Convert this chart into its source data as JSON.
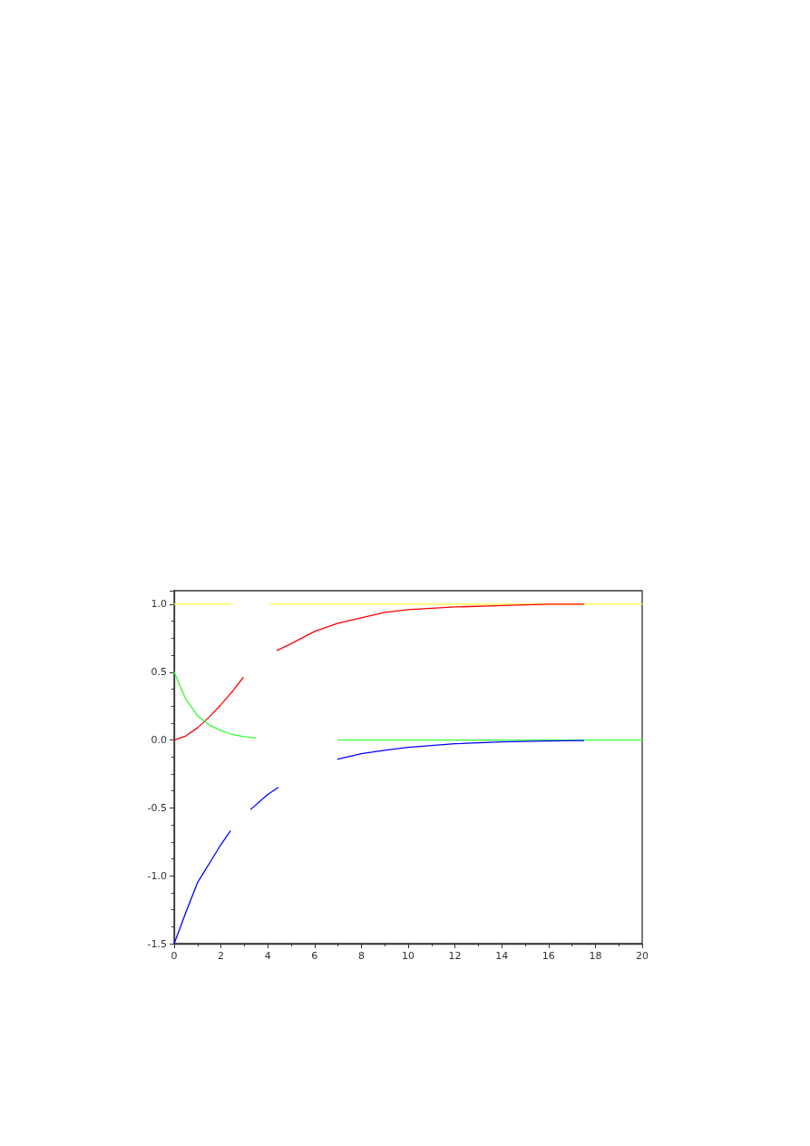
{
  "chart_data": {
    "type": "line",
    "xlim": [
      0,
      20
    ],
    "xticks": [
      0,
      2,
      4,
      6,
      8,
      10,
      12,
      14,
      16,
      18,
      20
    ],
    "ylim": [
      -1.5,
      1.1
    ],
    "yticks": [
      {
        "value": -1.5,
        "label": "-1.5"
      },
      {
        "value": -1,
        "label": "-1.0"
      },
      {
        "value": -0.5,
        "label": "-0.5"
      },
      {
        "value": 0,
        "label": "0.0"
      },
      {
        "value": 0.5,
        "label": "0.5"
      },
      {
        "value": 1,
        "label": "1.0"
      }
    ],
    "series": [
      {
        "color": "#ffff33",
        "x": [
          0,
          2.44,
          3.3,
          4.1,
          20
        ],
        "values": [
          1,
          1,
          null,
          1,
          1
        ]
      },
      {
        "color": "#ff0000",
        "x": [
          0,
          0.5,
          1,
          1.5,
          2,
          2.5,
          2.95,
          3.6,
          4.4,
          5,
          6,
          7,
          8,
          9,
          10,
          11,
          12,
          14,
          16,
          17.5
        ],
        "values": [
          0,
          0.03,
          0.09,
          0.17,
          0.26,
          0.36,
          0.46,
          null,
          0.66,
          0.71,
          0.8,
          0.86,
          0.9,
          0.94,
          0.96,
          0.97,
          0.98,
          0.99,
          1.0,
          1.0
        ]
      },
      {
        "color": "#33ff33",
        "x": [
          0,
          0.5,
          1,
          1.5,
          2,
          2.5,
          3,
          3.47,
          5,
          7,
          20
        ],
        "values": [
          0.5,
          0.3,
          0.18,
          0.11,
          0.07,
          0.04,
          0.025,
          0.016,
          null,
          0,
          0
        ]
      },
      {
        "color": "#0000ff",
        "x": [
          0,
          0.5,
          1,
          1.5,
          2,
          2.4,
          2.8,
          3.28,
          4,
          4.44,
          5.7,
          7,
          8,
          9,
          10,
          12,
          14,
          16,
          17.5
        ],
        "values": [
          -1.5,
          -1.27,
          -1.05,
          -0.91,
          -0.77,
          -0.67,
          null,
          -0.51,
          -0.4,
          -0.35,
          null,
          -0.14,
          -0.1,
          -0.075,
          -0.054,
          -0.027,
          -0.014,
          -0.007,
          -0.004
        ]
      }
    ]
  }
}
